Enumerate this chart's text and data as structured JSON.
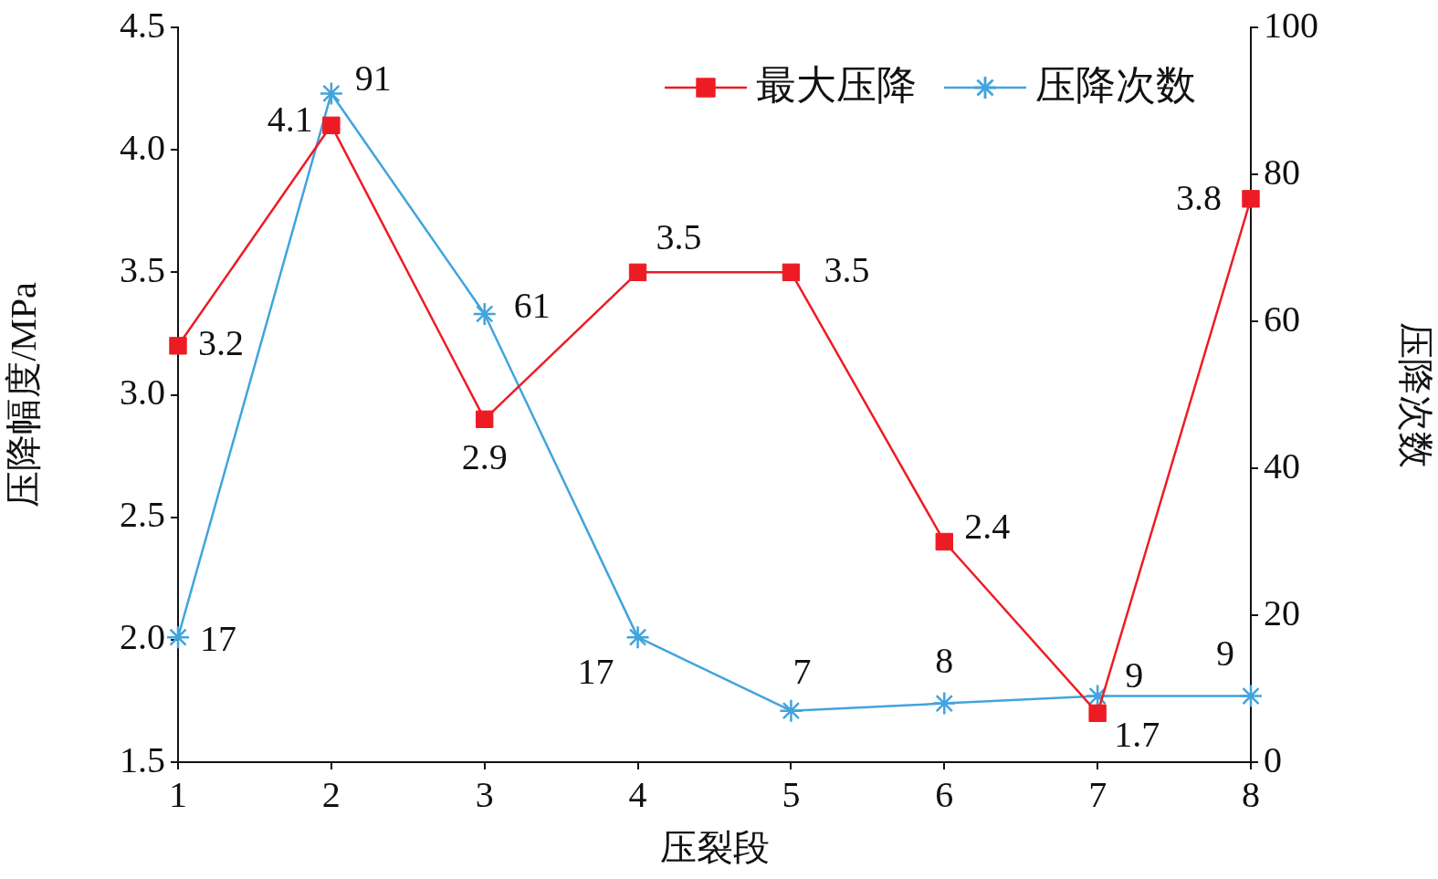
{
  "chart_data": {
    "type": "line",
    "xlabel": "压裂段",
    "ylabel": "压降幅度/MPa",
    "y2label": "压降次数",
    "x": [
      1,
      2,
      3,
      4,
      5,
      6,
      7,
      8
    ],
    "xlim": [
      1,
      8
    ],
    "xticks": [
      1,
      2,
      3,
      4,
      5,
      6,
      7,
      8
    ],
    "ylim": [
      1.5,
      4.5
    ],
    "yticks": [
      {
        "value": 1.5,
        "label": "1.5"
      },
      {
        "value": 2,
        "label": "2.0"
      },
      {
        "value": 2.5,
        "label": "2.5"
      },
      {
        "value": 3,
        "label": "3.0"
      },
      {
        "value": 3.5,
        "label": "3.5"
      },
      {
        "value": 4,
        "label": "4.0"
      },
      {
        "value": 4.5,
        "label": "4.5"
      }
    ],
    "y2lim": [
      0,
      100
    ],
    "y2ticks": [
      0,
      20,
      40,
      60,
      80,
      100
    ],
    "series": [
      {
        "name": "最大压降",
        "color": "#ed1c24",
        "marker": "square",
        "values": [
          3.2,
          4.1,
          2.9,
          3.5,
          3.5,
          2.4,
          1.7,
          3.8
        ]
      },
      {
        "name": "压降次数",
        "color": "#41a4dc",
        "marker": "cross",
        "axis": "y2",
        "values": [
          17,
          91,
          61,
          17,
          7,
          8,
          9,
          9
        ]
      }
    ],
    "data_labels": true,
    "legend": "top right",
    "grid": false,
    "line_style": "solid"
  }
}
